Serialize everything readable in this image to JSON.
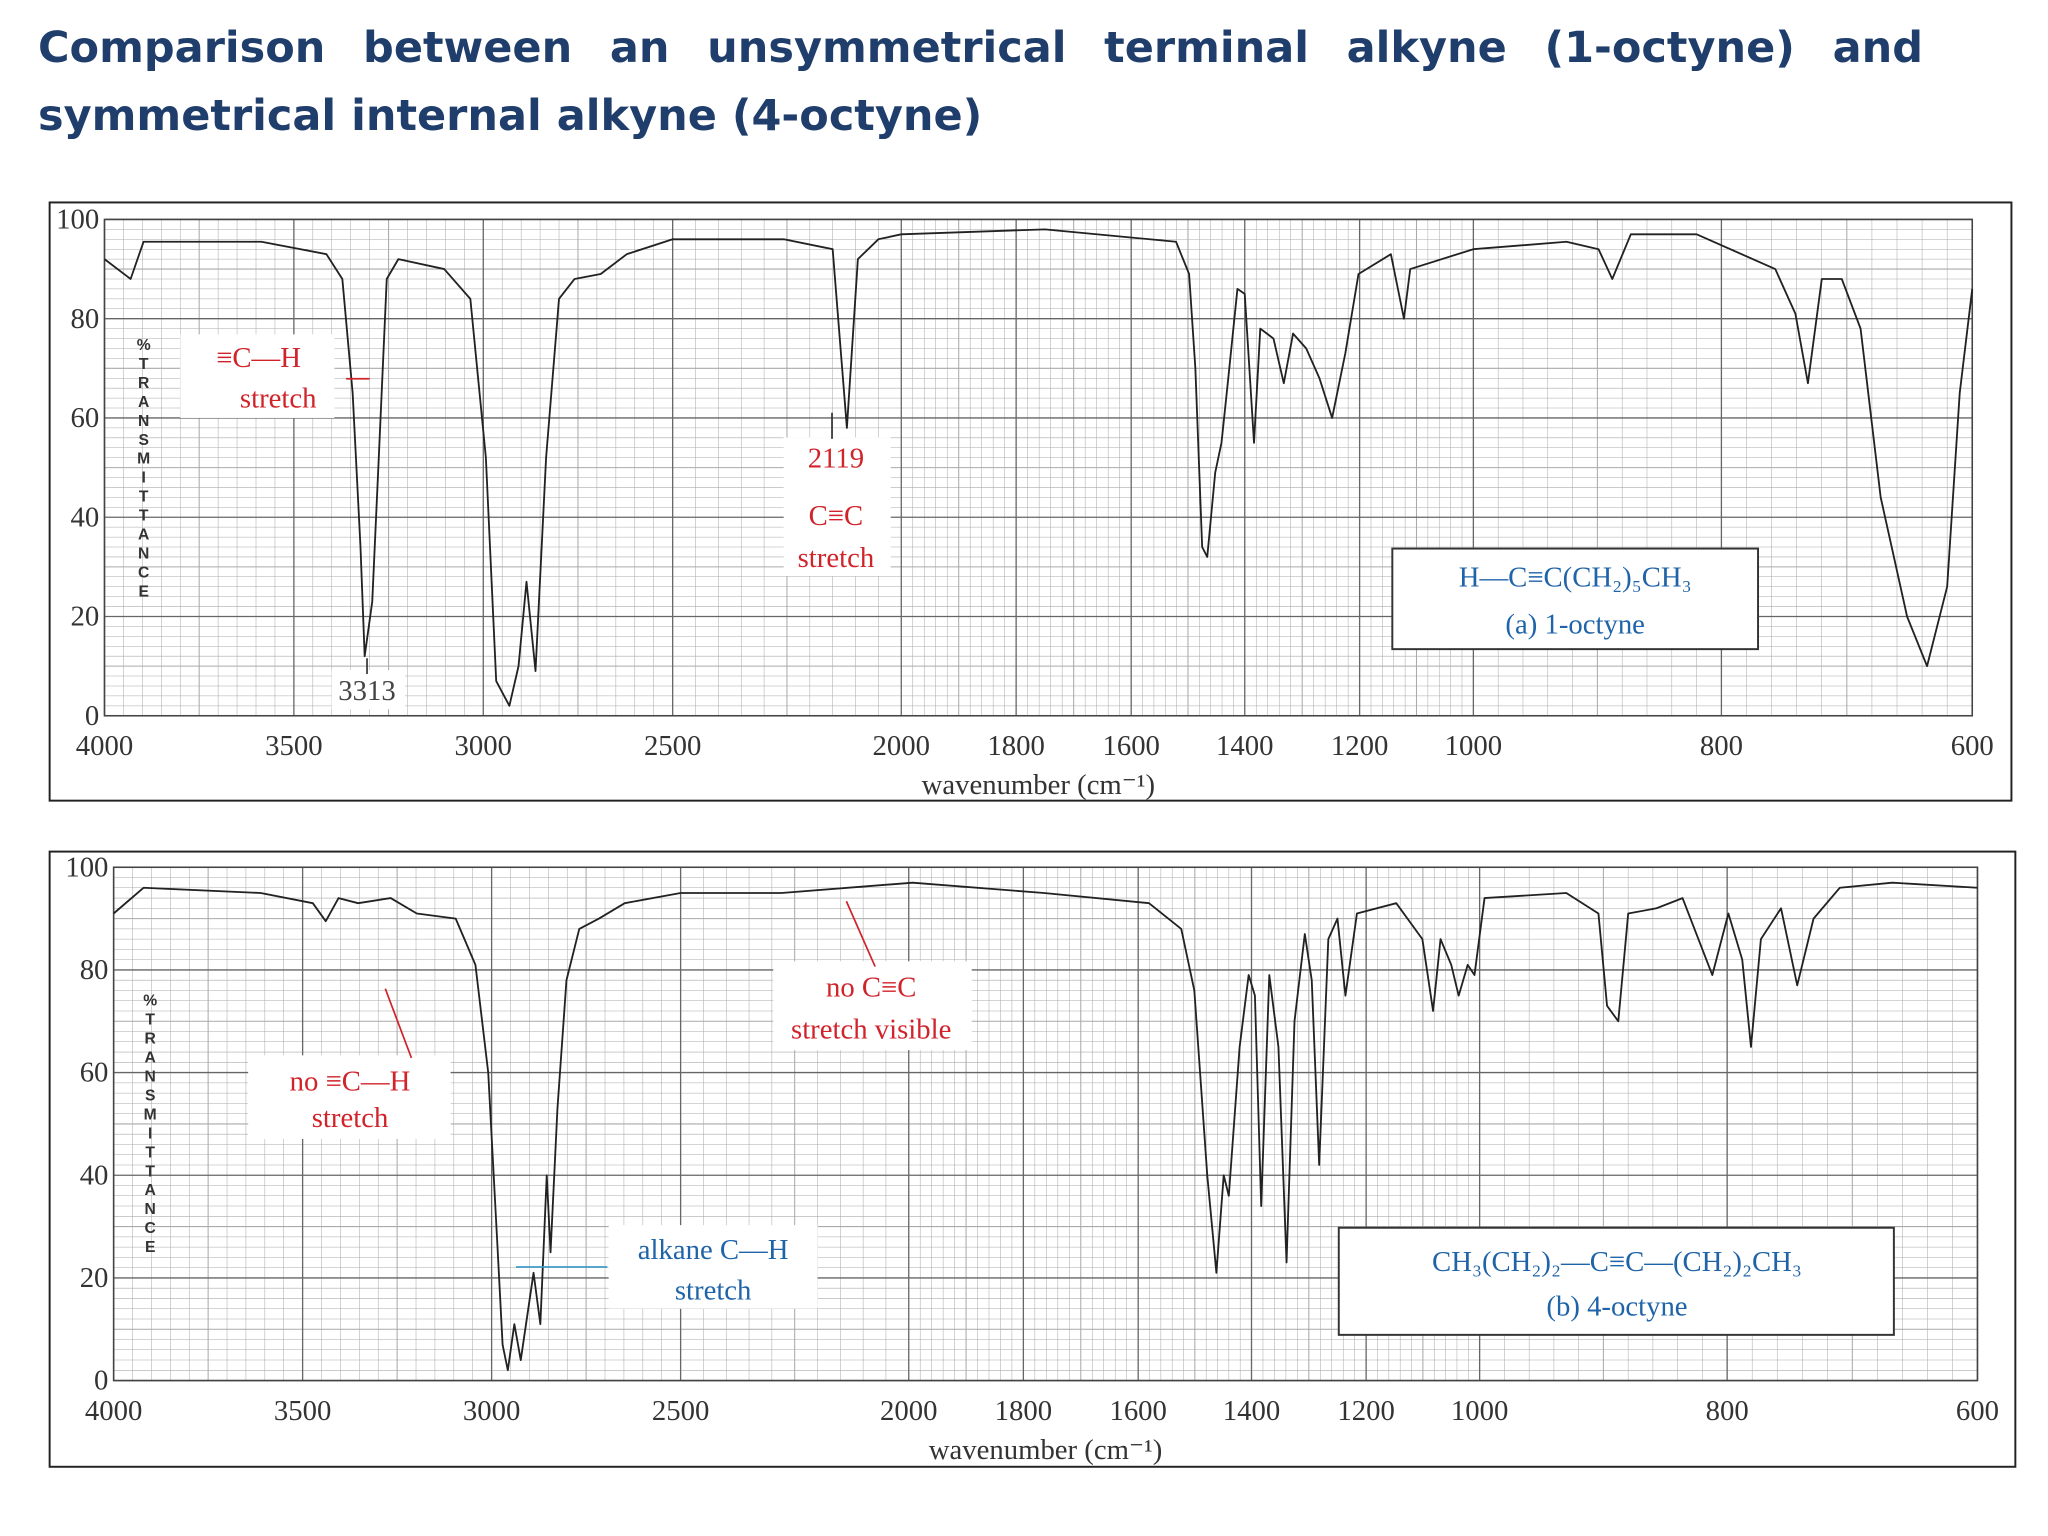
{
  "title": "Comparison between an unsymmetrical terminal alkyne (1-octyne) and symmetrical internal alkyne (4-octyne)",
  "chart_data": [
    {
      "type": "line",
      "color": "#222222",
      "ylabel": "%TRANSMITTANCE",
      "xlabel": "wavenumber (cm⁻¹)",
      "xlim": [
        4000,
        600
      ],
      "xticks": [
        4000,
        3500,
        3000,
        2500,
        2000,
        1800,
        1600,
        1400,
        1200,
        1000,
        800,
        600
      ],
      "ylim": [
        0,
        100
      ],
      "yticks": [
        0,
        20,
        40,
        60,
        80,
        100
      ],
      "grid": true,
      "x": [
        4000,
        3931,
        3897,
        3586,
        3414,
        3372,
        3345,
        3324,
        3313,
        3293,
        3276,
        3255,
        3224,
        3103,
        3034,
        2993,
        2966,
        2931,
        2907,
        2886,
        2862,
        2834,
        2800,
        2759,
        2690,
        2621,
        2500,
        2257,
        2150,
        2119,
        2095,
        2050,
        2000,
        1750,
        1521,
        1498,
        1487,
        1475,
        1466,
        1452,
        1441,
        1429,
        1413,
        1400,
        1384,
        1373,
        1350,
        1332,
        1316,
        1293,
        1270,
        1248,
        1225,
        1202,
        1145,
        1122,
        1111,
        1000,
        925,
        899,
        888,
        873,
        820,
        757,
        741,
        731,
        720,
        704,
        689,
        673,
        652,
        636,
        620,
        610,
        600
      ],
      "values": [
        92,
        88,
        95.5,
        95.5,
        93,
        88,
        65,
        34,
        12,
        23,
        52,
        88,
        92,
        90,
        84,
        52,
        7,
        2,
        10,
        27,
        9,
        52,
        84,
        88,
        89,
        93,
        96,
        96,
        94,
        58,
        92,
        96,
        97,
        98,
        95.5,
        89,
        70,
        34,
        32,
        49,
        55,
        68,
        86,
        85,
        55,
        78,
        76,
        67,
        77,
        74,
        68,
        60,
        73,
        89,
        93,
        80,
        90,
        94,
        95.5,
        94,
        88,
        97,
        97,
        90,
        81,
        67,
        88,
        88,
        78,
        44,
        20,
        10,
        26,
        65,
        86
      ],
      "annotations": [
        {
          "text": "≡C—H",
          "color": "#d0232a"
        },
        {
          "text": "stretch",
          "color": "#d0232a"
        },
        {
          "text": "3313",
          "color": "#444444"
        },
        {
          "text": "2119",
          "color": "#d0232a"
        },
        {
          "text": "C≡C",
          "color": "#d0232a"
        },
        {
          "text": "stretch",
          "color": "#d0232a"
        },
        {
          "text": "H—C≡C(CH₂)₅CH₃",
          "color": "#1f63a8"
        },
        {
          "text": "(a) 1-octyne",
          "color": "#1f63a8"
        }
      ]
    },
    {
      "type": "line",
      "color": "#222222",
      "ylabel": "%TRANSMITTANCE",
      "xlabel": "wavenumber (cm⁻¹)",
      "xlim": [
        4000,
        600
      ],
      "xticks": [
        4000,
        3500,
        3000,
        2500,
        2000,
        1800,
        1600,
        1400,
        1200,
        1000,
        800,
        600
      ],
      "ylim": [
        0,
        100
      ],
      "yticks": [
        0,
        20,
        40,
        60,
        80,
        100
      ],
      "grid": true,
      "x": [
        4000,
        3921,
        3611,
        3473,
        3439,
        3405,
        3353,
        3267,
        3198,
        3095,
        3043,
        3009,
        2985,
        2971,
        2957,
        2940,
        2923,
        2889,
        2871,
        2854,
        2844,
        2826,
        2802,
        2768,
        2716,
        2648,
        2500,
        2279,
        1993,
        1764,
        1581,
        1524,
        1501,
        1478,
        1462,
        1449,
        1440,
        1421,
        1405,
        1394,
        1383,
        1369,
        1353,
        1339,
        1325,
        1307,
        1295,
        1282,
        1266,
        1250,
        1236,
        1216,
        1147,
        1101,
        1082,
        1069,
        1050,
        1037,
        1021,
        1009,
        996,
        930,
        904,
        897,
        888,
        880,
        857,
        836,
        820,
        812,
        799,
        788,
        781,
        773,
        757,
        744,
        731,
        710,
        668,
        600
      ],
      "values": [
        91,
        96,
        95,
        93,
        89.5,
        94,
        93,
        94,
        91,
        90,
        81,
        60,
        27,
        7,
        2,
        11,
        4,
        21,
        11,
        40,
        25,
        53,
        78,
        88,
        90,
        93,
        95,
        95,
        97,
        95,
        93,
        88,
        76,
        40,
        21,
        40,
        36,
        65,
        79,
        75,
        34,
        79,
        65,
        23,
        70,
        87,
        78,
        42,
        86,
        90,
        75,
        91,
        93,
        86,
        72,
        86,
        81,
        75,
        81,
        79,
        94,
        95,
        91,
        73,
        70,
        91,
        92,
        94,
        84,
        79,
        91,
        82,
        65,
        86,
        92,
        77,
        90,
        96,
        97,
        96
      ],
      "annotations": [
        {
          "text": "no ≡C—H",
          "color": "#d0232a"
        },
        {
          "text": "stretch",
          "color": "#d0232a"
        },
        {
          "text": "no C≡C",
          "color": "#d0232a"
        },
        {
          "text": "stretch visible",
          "color": "#d0232a"
        },
        {
          "text": "alkane C—H",
          "color": "#1f63a8"
        },
        {
          "text": "stretch",
          "color": "#1f63a8"
        },
        {
          "text": "CH₃(CH₂)₂—C≡C—(CH₂)₂CH₃",
          "color": "#1f63a8"
        },
        {
          "text": "(b) 4-octyne",
          "color": "#1f63a8"
        }
      ]
    }
  ]
}
